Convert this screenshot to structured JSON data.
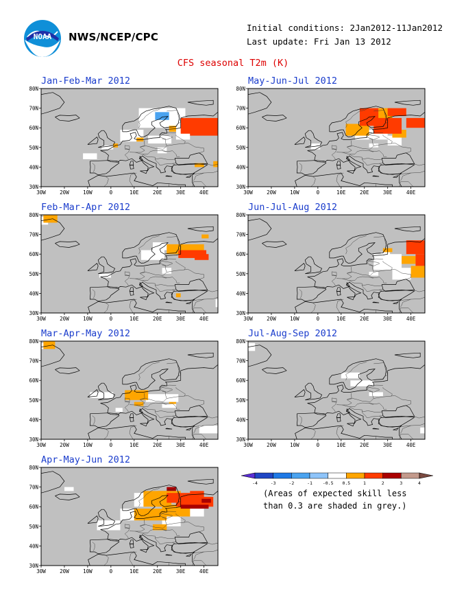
{
  "header": {
    "org": "NWS/NCEP/CPC",
    "initial_conditions": "Initial conditions: 2Jan2012-11Jan2012",
    "last_update": "Last update: Fri Jan 13 2012",
    "title": "CFS seasonal T2m (K)",
    "logo_text": "NOAA"
  },
  "axes": {
    "lat_labels": [
      "80N",
      "70N",
      "60N",
      "50N",
      "40N",
      "30N"
    ],
    "lon_labels": [
      "30W",
      "20W",
      "10W",
      "0",
      "10E",
      "20E",
      "30E",
      "40E"
    ],
    "lon_range": [
      -30,
      46
    ],
    "lat_range": [
      30,
      80
    ]
  },
  "panels": [
    {
      "title": "Jan-Feb-Mar 2012",
      "white": [
        [
          -12,
          44,
          6,
          3
        ],
        [
          -4,
          49,
          5,
          2
        ],
        [
          4,
          53,
          10,
          6
        ],
        [
          12,
          60,
          18,
          10
        ],
        [
          22,
          64,
          10,
          6
        ],
        [
          16,
          52,
          10,
          4
        ],
        [
          28,
          54,
          6,
          6
        ],
        [
          20,
          47,
          4,
          3
        ]
      ],
      "blue": [
        [
          19,
          64,
          6,
          4
        ]
      ],
      "c05": [
        [
          25,
          58,
          3,
          3
        ],
        [
          1,
          50,
          2,
          2
        ],
        [
          11,
          53,
          3,
          2
        ],
        [
          36,
          40,
          4,
          2
        ],
        [
          44,
          40,
          2,
          3
        ]
      ],
      "c1": [
        [
          30,
          57,
          16,
          8
        ],
        [
          34,
          56,
          12,
          3
        ]
      ],
      "c2": []
    },
    {
      "title": "May-Jun-Jul 2012",
      "white": [
        [
          -3,
          49,
          4,
          3
        ],
        [
          16,
          54,
          14,
          5
        ],
        [
          30,
          51,
          6,
          5
        ],
        [
          22,
          50,
          4,
          2
        ]
      ],
      "blue": [],
      "c05": [
        [
          12,
          56,
          10,
          6
        ],
        [
          24,
          63,
          8,
          7
        ],
        [
          32,
          55,
          6,
          4
        ]
      ],
      "c1": [
        [
          18,
          61,
          8,
          9
        ],
        [
          24,
          57,
          12,
          8
        ],
        [
          38,
          60,
          8,
          5
        ],
        [
          30,
          66,
          8,
          4
        ]
      ],
      "c2": []
    },
    {
      "title": "Feb-Mar-Apr 2012",
      "white": [
        [
          -30,
          75,
          3,
          4
        ],
        [
          13,
          57,
          10,
          5
        ],
        [
          18,
          62,
          6,
          4
        ],
        [
          -5,
          48,
          5,
          2
        ],
        [
          22,
          50,
          4,
          3
        ],
        [
          45,
          33,
          2,
          4
        ]
      ],
      "blue": [],
      "c05": [
        [
          -29,
          76,
          6,
          4
        ],
        [
          24,
          60,
          6,
          5
        ],
        [
          30,
          61,
          10,
          4
        ],
        [
          39,
          68,
          3,
          2
        ],
        [
          28,
          38,
          2,
          2
        ]
      ],
      "c1": [
        [
          29,
          58,
          12,
          4
        ],
        [
          36,
          57,
          6,
          3
        ]
      ],
      "c2": []
    },
    {
      "title": "Jun-Jul-Aug 2012",
      "white": [
        [
          24,
          52,
          12,
          8
        ],
        [
          32,
          47,
          8,
          6
        ],
        [
          22,
          49,
          4,
          2
        ],
        [
          27,
          58,
          4,
          3
        ]
      ],
      "blue": [],
      "c05": [
        [
          36,
          55,
          6,
          4
        ],
        [
          40,
          48,
          6,
          6
        ],
        [
          28,
          61,
          4,
          2
        ]
      ],
      "c1": [
        [
          38,
          60,
          8,
          7
        ],
        [
          42,
          54,
          4,
          6
        ]
      ],
      "c2": []
    },
    {
      "title": "Mar-Apr-May 2012",
      "white": [
        [
          -30,
          76,
          4,
          3
        ],
        [
          -9,
          51,
          10,
          3
        ],
        [
          15,
          49,
          14,
          4
        ],
        [
          22,
          46,
          6,
          2
        ],
        [
          2,
          44,
          3,
          2
        ],
        [
          38,
          33,
          8,
          4
        ]
      ],
      "blue": [],
      "c05": [
        [
          -29,
          76,
          5,
          4
        ],
        [
          6,
          50,
          10,
          5
        ],
        [
          10,
          47,
          4,
          2
        ],
        [
          25,
          48,
          3,
          1
        ],
        [
          46,
          33,
          2,
          2
        ]
      ],
      "c1": [],
      "c2": []
    },
    {
      "title": "Jul-Aug-Sep 2012",
      "white": [
        [
          -30,
          75,
          3,
          4
        ],
        [
          10,
          61,
          8,
          3
        ],
        [
          14,
          57,
          10,
          3
        ],
        [
          22,
          52,
          6,
          2
        ],
        [
          44,
          33,
          2,
          3
        ]
      ],
      "blue": [],
      "c05": [],
      "c1": [],
      "c2": []
    },
    {
      "title": "Apr-May-Jun 2012",
      "white": [
        [
          -20,
          68,
          4,
          2
        ],
        [
          -6,
          48,
          10,
          5
        ],
        [
          4,
          53,
          8,
          6
        ],
        [
          10,
          60,
          10,
          7
        ],
        [
          22,
          50,
          8,
          6
        ],
        [
          34,
          55,
          6,
          4
        ]
      ],
      "blue": [],
      "c05": [
        [
          10,
          53,
          14,
          6
        ],
        [
          14,
          60,
          12,
          8
        ],
        [
          22,
          55,
          12,
          6
        ],
        [
          18,
          48,
          6,
          3
        ],
        [
          26,
          63,
          4,
          5
        ],
        [
          20,
          65,
          6,
          3
        ]
      ],
      "c1": [
        [
          24,
          62,
          14,
          5
        ],
        [
          28,
          60,
          16,
          5
        ],
        [
          34,
          65,
          6,
          3
        ]
      ],
      "c2": [
        [
          24,
          68,
          4,
          2
        ],
        [
          30,
          59,
          12,
          2
        ],
        [
          39,
          62,
          4,
          2
        ]
      ]
    }
  ],
  "legend": {
    "labels": [
      "-4",
      "-3",
      "-2",
      "-1",
      "-0.5",
      "0.5",
      "1",
      "2",
      "3",
      "4"
    ],
    "colors": [
      "#5b2fd6",
      "#1f46c4",
      "#1e79e6",
      "#4aa3f0",
      "#8ec4fa",
      "#ffffff",
      "#ffa500",
      "#ff3b00",
      "#aa0000",
      "#c39a8c",
      "#7a4a40"
    ],
    "note_line1": "(Areas of expected skill less",
    "note_line2": "than 0.3 are shaded in grey.)"
  },
  "colors": {
    "grey_mask": "#c0c0c0",
    "coast": "#000000",
    "c05": "#ffa500",
    "c1": "#ff3b00",
    "c2": "#aa0000",
    "blue": "#4aa3f0",
    "title_blue": "#1a3ccc",
    "title_red": "#dd0000"
  }
}
